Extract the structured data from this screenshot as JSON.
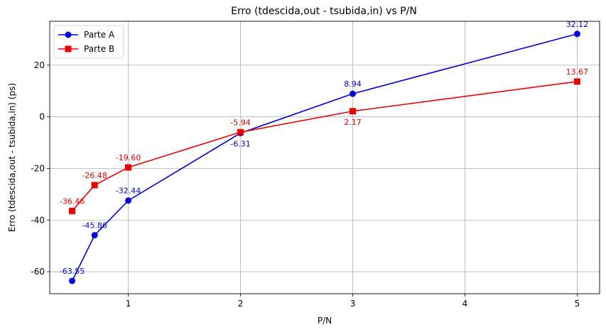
{
  "chart_data": {
    "type": "line",
    "title": "Erro (tdescida,out - tsubida,in) vs P/N",
    "xlabel": "P/N",
    "ylabel": "Erro (tdescida,out - tsubida,in) (ps)",
    "xlim": [
      0.3,
      5.2
    ],
    "ylim": [
      -68.5,
      37.0
    ],
    "xticks": [
      1,
      2,
      3,
      4,
      5
    ],
    "yticks": [
      -60,
      -40,
      -20,
      0,
      20
    ],
    "grid": true,
    "legend_position": "top-left",
    "series": [
      {
        "name": "Parte A",
        "color": "#0000dd",
        "marker": "circle",
        "x": [
          0.5,
          0.7,
          1,
          2,
          3,
          5
        ],
        "y": [
          -63.55,
          -45.86,
          -32.44,
          -6.31,
          8.94,
          32.12
        ],
        "labels": [
          "-63.55",
          "-45.86",
          "-32.44",
          "-6.31",
          "8.94",
          "32.12"
        ],
        "label_side": [
          "above",
          "above",
          "above",
          "below",
          "above",
          "above"
        ]
      },
      {
        "name": "Parte B",
        "color": "#ee0000",
        "marker": "square",
        "x": [
          0.5,
          0.7,
          1,
          2,
          3,
          5
        ],
        "y": [
          -36.46,
          -26.48,
          -19.6,
          -5.94,
          2.17,
          13.67
        ],
        "labels": [
          "-36.46",
          "-26.48",
          "-19.60",
          "-5.94",
          "2.17",
          "13.67"
        ],
        "label_side": [
          "above",
          "above",
          "above",
          "above",
          "below",
          "above"
        ]
      }
    ]
  }
}
